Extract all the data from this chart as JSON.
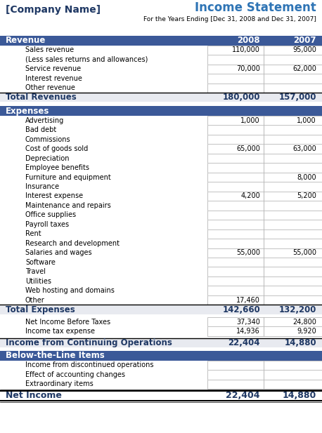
{
  "title_left": "[Company Name]",
  "title_right": "Income Statement",
  "subtitle": "For the Years Ending [Dec 31, 2008 and Dec 31, 2007]",
  "sections": [
    {
      "header": "Revenue",
      "rows": [
        {
          "label": "Sales revenue",
          "v2008": "110,000",
          "v2007": "95,000"
        },
        {
          "label": "(Less sales returns and allowances)",
          "v2008": "",
          "v2007": ""
        },
        {
          "label": "Service revenue",
          "v2008": "70,000",
          "v2007": "62,000"
        },
        {
          "label": "Interest revenue",
          "v2008": "",
          "v2007": ""
        },
        {
          "label": "Other revenue",
          "v2008": "",
          "v2007": ""
        }
      ],
      "total_label": "Total Revenues",
      "total_2008": "180,000",
      "total_2007": "157,000"
    },
    {
      "header": "Expenses",
      "rows": [
        {
          "label": "Advertising",
          "v2008": "1,000",
          "v2007": "1,000"
        },
        {
          "label": "Bad debt",
          "v2008": "",
          "v2007": ""
        },
        {
          "label": "Commissions",
          "v2008": "",
          "v2007": ""
        },
        {
          "label": "Cost of goods sold",
          "v2008": "65,000",
          "v2007": "63,000"
        },
        {
          "label": "Depreciation",
          "v2008": "",
          "v2007": ""
        },
        {
          "label": "Employee benefits",
          "v2008": "",
          "v2007": ""
        },
        {
          "label": "Furniture and equipment",
          "v2008": "",
          "v2007": "8,000"
        },
        {
          "label": "Insurance",
          "v2008": "",
          "v2007": ""
        },
        {
          "label": "Interest expense",
          "v2008": "4,200",
          "v2007": "5,200"
        },
        {
          "label": "Maintenance and repairs",
          "v2008": "",
          "v2007": ""
        },
        {
          "label": "Office supplies",
          "v2008": "",
          "v2007": ""
        },
        {
          "label": "Payroll taxes",
          "v2008": "",
          "v2007": ""
        },
        {
          "label": "Rent",
          "v2008": "",
          "v2007": ""
        },
        {
          "label": "Research and development",
          "v2008": "",
          "v2007": ""
        },
        {
          "label": "Salaries and wages",
          "v2008": "55,000",
          "v2007": "55,000"
        },
        {
          "label": "Software",
          "v2008": "",
          "v2007": ""
        },
        {
          "label": "Travel",
          "v2008": "",
          "v2007": ""
        },
        {
          "label": "Utilities",
          "v2008": "",
          "v2007": ""
        },
        {
          "label": "Web hosting and domains",
          "v2008": "",
          "v2007": ""
        },
        {
          "label": "Other",
          "v2008": "17,460",
          "v2007": ""
        }
      ],
      "total_label": "Total Expenses",
      "total_2008": "142,660",
      "total_2007": "132,200"
    }
  ],
  "mid_rows": [
    {
      "label": "Net Income Before Taxes",
      "v2008": "37,340",
      "v2007": "24,800"
    },
    {
      "label": "Income tax expense",
      "v2008": "14,936",
      "v2007": "9,920"
    }
  ],
  "ops_label": "Income from Continuing Operations",
  "ops_2008": "22,404",
  "ops_2007": "14,880",
  "below_header": "Below-the-Line Items",
  "below_rows": [
    {
      "label": "Income from discontinued operations",
      "v2008": "",
      "v2007": ""
    },
    {
      "label": "Effect of accounting changes",
      "v2008": "",
      "v2007": ""
    },
    {
      "label": "Extraordinary items",
      "v2008": "",
      "v2007": ""
    }
  ],
  "net_label": "Net Income",
  "net_2008": "22,404",
  "net_2007": "14,880",
  "header_bg": "#3B5998",
  "header_fg": "#FFFFFF",
  "total_bg": "#E8EAF0",
  "border_color": "#AAAAAA",
  "title_left_color": "#1F3864",
  "title_right_color": "#2E74B5",
  "total_text_color": "#1F3864"
}
